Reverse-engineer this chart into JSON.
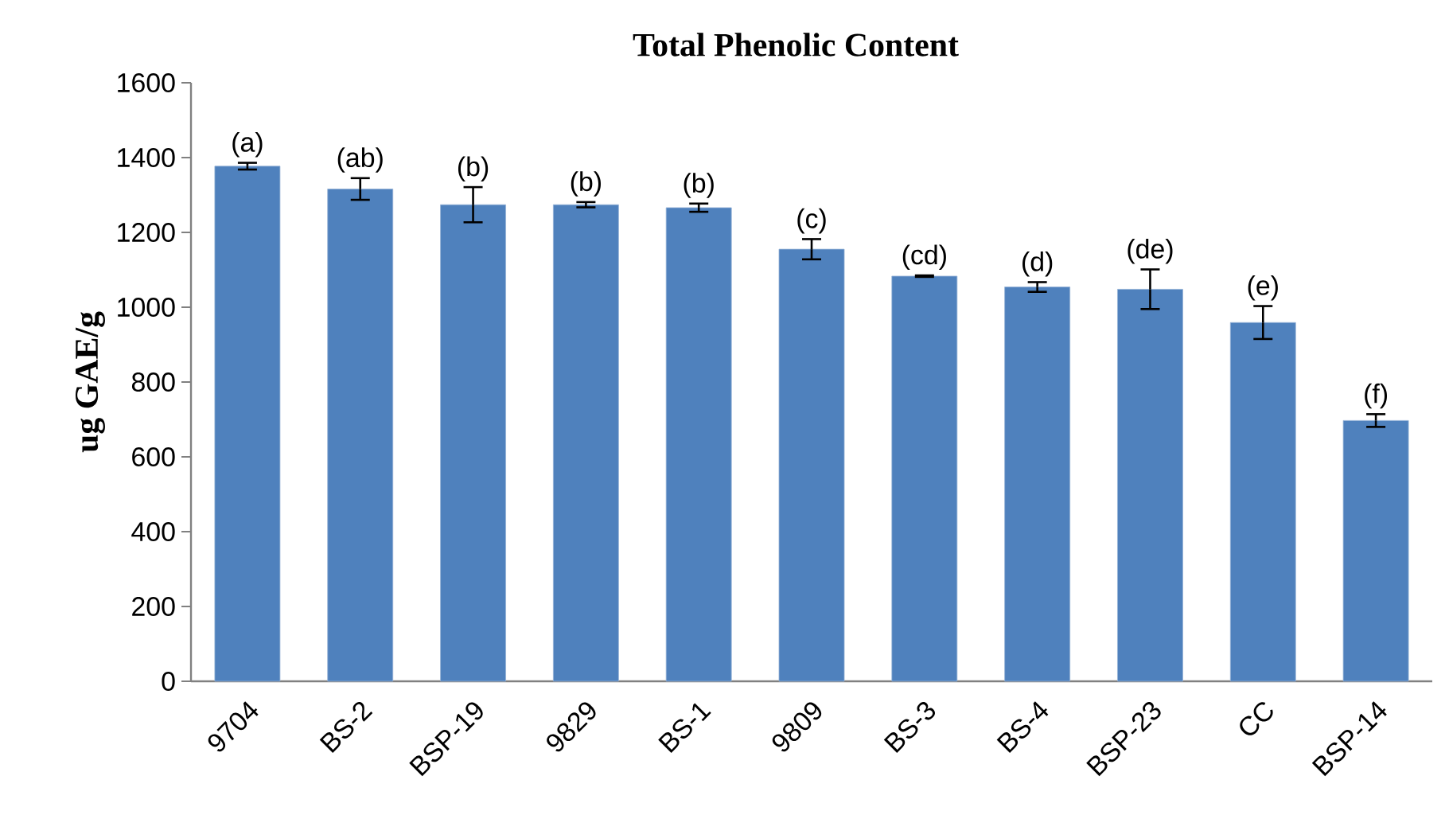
{
  "chart_data": {
    "type": "bar",
    "title": "Total Phenolic Content",
    "ylabel": "ug GAE/g",
    "categories": [
      "9704",
      "BS-2",
      "BSP-19",
      "9829",
      "BS-1",
      "9809",
      "BS-3",
      "BS-4",
      "BSP-23",
      "CC",
      "BSP-14"
    ],
    "values": [
      1377,
      1316,
      1274,
      1274,
      1266,
      1155,
      1083,
      1054,
      1048,
      959,
      697
    ],
    "errors": [
      9,
      29,
      47,
      7,
      11,
      27,
      2,
      13,
      53,
      44,
      17
    ],
    "color": "#4f81bd",
    "ylim": [
      0,
      1600
    ],
    "yticks": [
      0,
      200,
      400,
      600,
      800,
      1000,
      1200,
      1400,
      1600
    ],
    "grid": false,
    "annotations": [
      {
        "text": "(a)",
        "x": "9704",
        "y": 1386
      },
      {
        "text": "(ab)",
        "x": "BS-2",
        "y": 1345
      },
      {
        "text": "(b)",
        "x": "BSP-19",
        "y": 1321
      },
      {
        "text": "(b)",
        "x": "9829",
        "y": 1281
      },
      {
        "text": "(b)",
        "x": "BS-1",
        "y": 1277
      },
      {
        "text": "(c)",
        "x": "9809",
        "y": 1182
      },
      {
        "text": "(cd)",
        "x": "BS-3",
        "y": 1085
      },
      {
        "text": "(d)",
        "x": "BS-4",
        "y": 1067
      },
      {
        "text": "(de)",
        "x": "BSP-23",
        "y": 1101
      },
      {
        "text": "(e)",
        "x": "CC",
        "y": 1003
      },
      {
        "text": "(f)",
        "x": "BSP-14",
        "y": 714
      }
    ]
  }
}
